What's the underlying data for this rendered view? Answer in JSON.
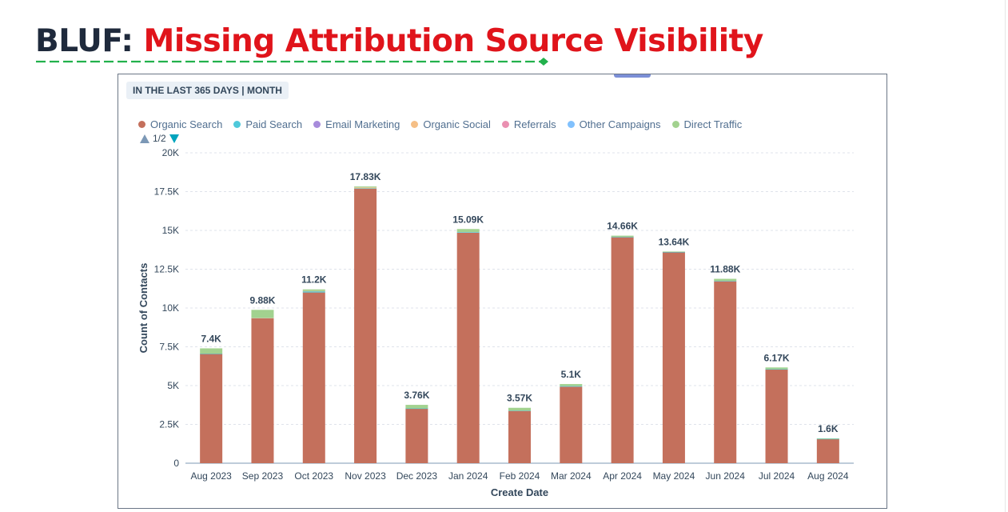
{
  "slide": {
    "title_prefix": "BLUF:",
    "title_main": "Missing Attribution Source Visibility"
  },
  "report": {
    "range_label": "IN THE LAST 365 DAYS | MONTH",
    "pager": "1/2"
  },
  "chart_data": {
    "type": "bar",
    "stacked": true,
    "xlabel": "Create Date",
    "ylabel": "Count of Contacts",
    "ylim": [
      0,
      20000
    ],
    "yticks": [
      0,
      2500,
      5000,
      7500,
      10000,
      12500,
      15000,
      17500,
      20000
    ],
    "ytick_labels": [
      "0",
      "2.5K",
      "5K",
      "7.5K",
      "10K",
      "12.5K",
      "15K",
      "17.5K",
      "20K"
    ],
    "grid": true,
    "legend_position": "top-left",
    "categories": [
      "Aug 2023",
      "Sep 2023",
      "Oct 2023",
      "Nov 2023",
      "Dec 2023",
      "Jan 2024",
      "Feb 2024",
      "Mar 2024",
      "Apr 2024",
      "May 2024",
      "Jun 2024",
      "Jul 2024",
      "Aug 2024"
    ],
    "totals": [
      7400,
      9880,
      11200,
      17830,
      3760,
      15090,
      3570,
      5100,
      14660,
      13640,
      11880,
      6170,
      1600
    ],
    "total_labels": [
      "7.4K",
      "9.88K",
      "11.2K",
      "17.83K",
      "3.76K",
      "15.09K",
      "3.57K",
      "5.1K",
      "14.66K",
      "13.64K",
      "11.88K",
      "6.17K",
      "1.6K"
    ],
    "series": [
      {
        "name": "Organic Search",
        "color": "#c4705c",
        "values": [
          7050,
          9350,
          11000,
          17700,
          3520,
          14850,
          3380,
          4930,
          14570,
          13600,
          11720,
          6050,
          1560
        ]
      },
      {
        "name": "Paid Search",
        "color": "#4fc9da",
        "values": [
          10,
          10,
          90,
          10,
          10,
          40,
          10,
          40,
          10,
          10,
          30,
          10,
          10
        ]
      },
      {
        "name": "Email Marketing",
        "color": "#a78bdb",
        "values": [
          0,
          0,
          0,
          0,
          0,
          0,
          0,
          0,
          0,
          0,
          0,
          0,
          0
        ]
      },
      {
        "name": "Organic Social",
        "color": "#f5bf86",
        "values": [
          0,
          10,
          10,
          60,
          0,
          0,
          0,
          0,
          0,
          0,
          0,
          0,
          0
        ]
      },
      {
        "name": "Referrals",
        "color": "#ea90b1",
        "values": [
          0,
          0,
          0,
          0,
          0,
          0,
          0,
          0,
          0,
          0,
          0,
          0,
          0
        ]
      },
      {
        "name": "Other Campaigns",
        "color": "#81c1fd",
        "values": [
          0,
          0,
          0,
          0,
          0,
          0,
          0,
          0,
          0,
          0,
          0,
          0,
          0
        ]
      },
      {
        "name": "Direct Traffic",
        "color": "#a2d28f",
        "values": [
          340,
          510,
          100,
          60,
          230,
          200,
          180,
          130,
          80,
          30,
          130,
          110,
          30
        ]
      }
    ]
  }
}
